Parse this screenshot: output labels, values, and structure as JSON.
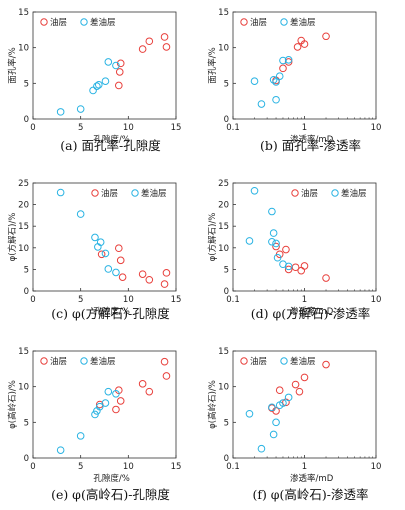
{
  "chart_data": [
    {
      "type": "scatter",
      "scale": "linear",
      "caption": "(a) 面孔率-孔隙度",
      "xlabel": "孔隙度/%",
      "ylabel": "面孔率/%",
      "xlim": [
        0,
        15
      ],
      "ylim": [
        0,
        15
      ],
      "xticks": [
        0,
        5,
        10,
        15
      ],
      "yticks": [
        0,
        5,
        10,
        15
      ],
      "legend_position": "top-left",
      "series": [
        {
          "name": "油层",
          "color": "#e8403c",
          "points": [
            [
              9.0,
              4.7
            ],
            [
              9.1,
              6.6
            ],
            [
              9.2,
              7.8
            ],
            [
              11.5,
              9.8
            ],
            [
              12.2,
              10.9
            ],
            [
              13.8,
              11.5
            ],
            [
              14.0,
              10.1
            ]
          ]
        },
        {
          "name": "差油层",
          "color": "#29b3e3",
          "points": [
            [
              2.9,
              1.0
            ],
            [
              5.0,
              1.4
            ],
            [
              6.3,
              4.0
            ],
            [
              6.7,
              4.6
            ],
            [
              6.9,
              4.8
            ],
            [
              7.6,
              5.3
            ],
            [
              7.9,
              8.0
            ],
            [
              8.7,
              7.5
            ]
          ]
        }
      ]
    },
    {
      "type": "scatter",
      "scale": "log",
      "caption": "(b) 面孔率-渗透率",
      "xlabel": "渗透率/mD",
      "ylabel": "面孔率/%",
      "xlim": [
        0.1,
        10
      ],
      "ylim": [
        0,
        15
      ],
      "xticks": [
        0.1,
        1,
        10
      ],
      "yticks": [
        0,
        5,
        10,
        15
      ],
      "legend_position": "top-left",
      "series": [
        {
          "name": "油层",
          "color": "#e8403c",
          "points": [
            [
              0.4,
              5.4
            ],
            [
              0.5,
              7.1
            ],
            [
              0.6,
              8.0
            ],
            [
              0.8,
              10.1
            ],
            [
              0.9,
              11.0
            ],
            [
              1.0,
              10.5
            ],
            [
              2.0,
              11.6
            ]
          ]
        },
        {
          "name": "差油层",
          "color": "#29b3e3",
          "points": [
            [
              0.2,
              5.3
            ],
            [
              0.25,
              2.1
            ],
            [
              0.37,
              5.5
            ],
            [
              0.4,
              5.2
            ],
            [
              0.45,
              6.0
            ],
            [
              0.5,
              8.2
            ],
            [
              0.6,
              8.3
            ],
            [
              0.4,
              2.7
            ]
          ]
        }
      ]
    },
    {
      "type": "scatter",
      "scale": "linear",
      "caption": "(c) φ(方解石)-孔隙度",
      "xlabel": "孔隙度/%",
      "ylabel": "φ(方解石)/%",
      "xlim": [
        0,
        15
      ],
      "ylim": [
        0,
        25
      ],
      "xticks": [
        0,
        5,
        10,
        15
      ],
      "yticks": [
        0,
        5,
        10,
        15,
        20,
        25
      ],
      "legend_position": "top-right",
      "series": [
        {
          "name": "油层",
          "color": "#e8403c",
          "points": [
            [
              7.2,
              8.5
            ],
            [
              9.0,
              9.9
            ],
            [
              9.2,
              7.1
            ],
            [
              9.4,
              3.2
            ],
            [
              11.5,
              3.9
            ],
            [
              12.2,
              2.6
            ],
            [
              13.8,
              1.6
            ],
            [
              14.0,
              4.2
            ]
          ]
        },
        {
          "name": "差油层",
          "color": "#29b3e3",
          "points": [
            [
              2.9,
              22.8
            ],
            [
              5.0,
              17.8
            ],
            [
              6.5,
              12.4
            ],
            [
              6.8,
              10.2
            ],
            [
              7.1,
              11.3
            ],
            [
              7.6,
              8.7
            ],
            [
              7.9,
              5.1
            ],
            [
              8.7,
              4.3
            ]
          ]
        }
      ]
    },
    {
      "type": "scatter",
      "scale": "log",
      "caption": "(d) φ(方解石)-渗透率",
      "xlabel": "渗透率/mD",
      "ylabel": "φ(方解石)/%",
      "xlim": [
        0.1,
        10
      ],
      "ylim": [
        0,
        25
      ],
      "xticks": [
        0.1,
        1,
        10
      ],
      "yticks": [
        0,
        5,
        10,
        15,
        20,
        25
      ],
      "legend_position": "top-right",
      "series": [
        {
          "name": "油层",
          "color": "#e8403c",
          "points": [
            [
              0.4,
              10.3
            ],
            [
              0.45,
              8.5
            ],
            [
              0.55,
              9.6
            ],
            [
              0.6,
              5.0
            ],
            [
              0.75,
              5.5
            ],
            [
              0.9,
              4.7
            ],
            [
              1.0,
              5.8
            ],
            [
              2.0,
              3.0
            ]
          ]
        },
        {
          "name": "差油层",
          "color": "#29b3e3",
          "points": [
            [
              0.17,
              11.6
            ],
            [
              0.2,
              23.2
            ],
            [
              0.35,
              18.4
            ],
            [
              0.37,
              13.4
            ],
            [
              0.35,
              11.4
            ],
            [
              0.4,
              11.0
            ],
            [
              0.42,
              7.7
            ],
            [
              0.5,
              6.2
            ],
            [
              0.6,
              5.7
            ]
          ]
        }
      ]
    },
    {
      "type": "scatter",
      "scale": "linear",
      "caption": "(e) φ(高岭石)-孔隙度",
      "xlabel": "孔隙度/%",
      "ylabel": "φ(高岭石)/%",
      "xlim": [
        0,
        15
      ],
      "ylim": [
        0,
        15
      ],
      "xticks": [
        0,
        5,
        10,
        15
      ],
      "yticks": [
        0,
        5,
        10,
        15
      ],
      "legend_position": "top-left",
      "series": [
        {
          "name": "油层",
          "color": "#e8403c",
          "points": [
            [
              7.0,
              7.5
            ],
            [
              8.7,
              6.8
            ],
            [
              9.0,
              9.5
            ],
            [
              9.2,
              8.0
            ],
            [
              11.5,
              10.4
            ],
            [
              12.2,
              9.3
            ],
            [
              13.8,
              13.5
            ],
            [
              14.0,
              11.5
            ]
          ]
        },
        {
          "name": "差油层",
          "color": "#29b3e3",
          "points": [
            [
              2.9,
              1.1
            ],
            [
              5.0,
              3.1
            ],
            [
              6.5,
              6.1
            ],
            [
              6.7,
              6.6
            ],
            [
              7.0,
              7.2
            ],
            [
              7.6,
              7.7
            ],
            [
              7.9,
              9.3
            ],
            [
              8.7,
              9.0
            ]
          ]
        }
      ]
    },
    {
      "type": "scatter",
      "scale": "log",
      "caption": "(f) φ(高岭石)-渗透率",
      "xlabel": "渗透率/mD",
      "ylabel": "φ(高岭石)/%",
      "xlim": [
        0.1,
        10
      ],
      "ylim": [
        0,
        15
      ],
      "xticks": [
        0.1,
        1,
        10
      ],
      "yticks": [
        0,
        5,
        10,
        15
      ],
      "legend_position": "top-left",
      "series": [
        {
          "name": "油层",
          "color": "#e8403c",
          "points": [
            [
              0.35,
              7.0
            ],
            [
              0.4,
              6.6
            ],
            [
              0.45,
              9.5
            ],
            [
              0.55,
              7.8
            ],
            [
              0.75,
              10.3
            ],
            [
              0.85,
              9.3
            ],
            [
              1.0,
              11.3
            ],
            [
              2.0,
              13.1
            ]
          ]
        },
        {
          "name": "差油层",
          "color": "#29b3e3",
          "points": [
            [
              0.17,
              6.2
            ],
            [
              0.25,
              1.3
            ],
            [
              0.37,
              3.3
            ],
            [
              0.4,
              5.0
            ],
            [
              0.45,
              7.4
            ],
            [
              0.5,
              7.7
            ],
            [
              0.6,
              8.5
            ],
            [
              0.35,
              7.1
            ]
          ]
        }
      ]
    }
  ]
}
